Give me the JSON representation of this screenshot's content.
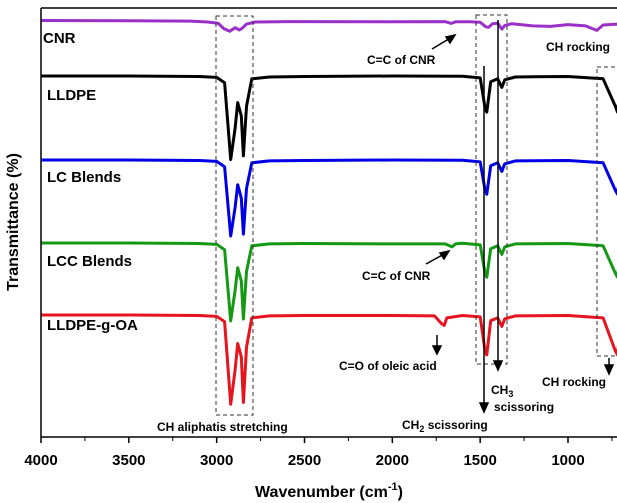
{
  "chart_data": {
    "type": "line",
    "title": "",
    "xlabel": "Wavenumber (cm",
    "xlabel_sup": "-1",
    "xlabel_close": ")",
    "ylabel": "Transmittance (%)",
    "xlim": [
      4000,
      680
    ],
    "x_reversed": true,
    "x_ticks": [
      "4000",
      "3500",
      "3000",
      "2500",
      "2000",
      "1500",
      "1000"
    ],
    "x_tick_values": [
      4000,
      3500,
      3000,
      2500,
      2000,
      1500,
      1000
    ],
    "y_ticks_shown": false,
    "grid": false,
    "legend": "inline labels",
    "series": [
      {
        "name": "CNR",
        "color": "#9b30c8",
        "baseline": 0.6,
        "points": [
          [
            4000,
            0
          ],
          [
            3500,
            0.2
          ],
          [
            3150,
            0.6
          ],
          [
            3050,
            1.6
          ],
          [
            2990,
            3.2
          ],
          [
            2960,
            9
          ],
          [
            2925,
            12
          ],
          [
            2895,
            8
          ],
          [
            2870,
            10.5
          ],
          [
            2855,
            8.5
          ],
          [
            2830,
            4
          ],
          [
            2780,
            1.6
          ],
          [
            2600,
            1.2
          ],
          [
            2000,
            1.4
          ],
          [
            1700,
            1.2
          ],
          [
            1665,
            3.2
          ],
          [
            1640,
            1.4
          ],
          [
            1560,
            1.4
          ],
          [
            1500,
            2
          ],
          [
            1468,
            7
          ],
          [
            1452,
            7.5
          ],
          [
            1430,
            3.5
          ],
          [
            1400,
            3
          ],
          [
            1376,
            9.5
          ],
          [
            1360,
            5.5
          ],
          [
            1320,
            3.5
          ],
          [
            1200,
            6
          ],
          [
            1100,
            6.5
          ],
          [
            1000,
            4.5
          ],
          [
            900,
            6
          ],
          [
            836,
            11
          ],
          [
            800,
            5
          ],
          [
            720,
            4
          ],
          [
            690,
            9
          ]
        ]
      },
      {
        "name": "LLDPE",
        "color": "#000000",
        "baseline": 0,
        "points": [
          [
            4000,
            0
          ],
          [
            3500,
            0
          ],
          [
            3100,
            0.5
          ],
          [
            3000,
            1.5
          ],
          [
            2955,
            7
          ],
          [
            2920,
            88
          ],
          [
            2895,
            55
          ],
          [
            2880,
            28
          ],
          [
            2860,
            42
          ],
          [
            2848,
            84
          ],
          [
            2830,
            32
          ],
          [
            2800,
            3
          ],
          [
            2700,
            1
          ],
          [
            2500,
            0.5
          ],
          [
            2000,
            0
          ],
          [
            1600,
            0.3
          ],
          [
            1500,
            2
          ],
          [
            1472,
            34
          ],
          [
            1462,
            38
          ],
          [
            1440,
            6
          ],
          [
            1400,
            3
          ],
          [
            1377,
            12
          ],
          [
            1360,
            4
          ],
          [
            1300,
            1
          ],
          [
            1200,
            0.8
          ],
          [
            1000,
            0.5
          ],
          [
            800,
            3
          ],
          [
            730,
            32
          ],
          [
            718,
            38
          ],
          [
            700,
            8
          ],
          [
            690,
            3
          ]
        ]
      },
      {
        "name": "LC Blends",
        "color": "#0000e6",
        "baseline": 0,
        "points": [
          [
            4000,
            0
          ],
          [
            3500,
            0
          ],
          [
            3100,
            0.5
          ],
          [
            3000,
            1.5
          ],
          [
            2955,
            7
          ],
          [
            2920,
            80
          ],
          [
            2895,
            50
          ],
          [
            2880,
            26
          ],
          [
            2860,
            40
          ],
          [
            2848,
            78
          ],
          [
            2830,
            30
          ],
          [
            2800,
            3
          ],
          [
            2700,
            1
          ],
          [
            2500,
            0.5
          ],
          [
            2000,
            0
          ],
          [
            1600,
            0.3
          ],
          [
            1500,
            2
          ],
          [
            1472,
            32
          ],
          [
            1462,
            36
          ],
          [
            1440,
            6
          ],
          [
            1400,
            3
          ],
          [
            1377,
            12
          ],
          [
            1360,
            4
          ],
          [
            1300,
            1
          ],
          [
            1200,
            0.8
          ],
          [
            1000,
            0.5
          ],
          [
            800,
            3
          ],
          [
            730,
            32
          ],
          [
            718,
            36
          ],
          [
            700,
            8
          ],
          [
            690,
            3
          ]
        ]
      },
      {
        "name": "LCC Blends",
        "color": "#139913",
        "baseline": 0,
        "points": [
          [
            4000,
            0
          ],
          [
            3500,
            0
          ],
          [
            3100,
            0.5
          ],
          [
            3000,
            1.5
          ],
          [
            2955,
            7
          ],
          [
            2920,
            82
          ],
          [
            2895,
            50
          ],
          [
            2880,
            26
          ],
          [
            2860,
            40
          ],
          [
            2848,
            80
          ],
          [
            2830,
            30
          ],
          [
            2800,
            3
          ],
          [
            2700,
            1
          ],
          [
            2500,
            0.5
          ],
          [
            2000,
            1
          ],
          [
            1700,
            1
          ],
          [
            1660,
            4
          ],
          [
            1640,
            1
          ],
          [
            1600,
            0.3
          ],
          [
            1500,
            2
          ],
          [
            1472,
            32
          ],
          [
            1462,
            36
          ],
          [
            1440,
            6
          ],
          [
            1400,
            3
          ],
          [
            1377,
            12
          ],
          [
            1360,
            4
          ],
          [
            1300,
            1
          ],
          [
            1200,
            0.8
          ],
          [
            1000,
            0.5
          ],
          [
            800,
            3
          ],
          [
            730,
            32
          ],
          [
            718,
            36
          ],
          [
            700,
            8
          ],
          [
            690,
            3
          ]
        ]
      },
      {
        "name": "LLDPE-g-OA",
        "color": "#e6141e",
        "baseline": 0,
        "points": [
          [
            4000,
            0
          ],
          [
            3500,
            0
          ],
          [
            3100,
            0.5
          ],
          [
            3000,
            1.5
          ],
          [
            2955,
            7
          ],
          [
            2920,
            94
          ],
          [
            2895,
            58
          ],
          [
            2880,
            30
          ],
          [
            2860,
            44
          ],
          [
            2848,
            92
          ],
          [
            2830,
            34
          ],
          [
            2800,
            3
          ],
          [
            2700,
            1
          ],
          [
            2500,
            0.5
          ],
          [
            2000,
            0.5
          ],
          [
            1760,
            1
          ],
          [
            1720,
            9
          ],
          [
            1705,
            11
          ],
          [
            1690,
            3
          ],
          [
            1600,
            0.5
          ],
          [
            1500,
            2
          ],
          [
            1472,
            38
          ],
          [
            1462,
            42
          ],
          [
            1440,
            6
          ],
          [
            1400,
            3
          ],
          [
            1377,
            12
          ],
          [
            1360,
            4
          ],
          [
            1300,
            1
          ],
          [
            1200,
            0.8
          ],
          [
            1000,
            0.5
          ],
          [
            800,
            3
          ],
          [
            730,
            38
          ],
          [
            718,
            42
          ],
          [
            700,
            8
          ],
          [
            690,
            3
          ]
        ]
      }
    ],
    "annotations": [
      {
        "text": "C=C of CNR"
      },
      {
        "text": "CH rocking"
      },
      {
        "text": "C=C of CNR"
      },
      {
        "text": "C=O of oleic acid"
      },
      {
        "text": "CH rocking"
      },
      {
        "text": "CH aliphatis stretching"
      },
      {
        "text": "CH",
        "sub": "2",
        "suffix": " scissoring"
      },
      {
        "text": "CH",
        "sub": "3",
        "suffix": ""
      },
      {
        "text": "scissoring"
      }
    ]
  }
}
